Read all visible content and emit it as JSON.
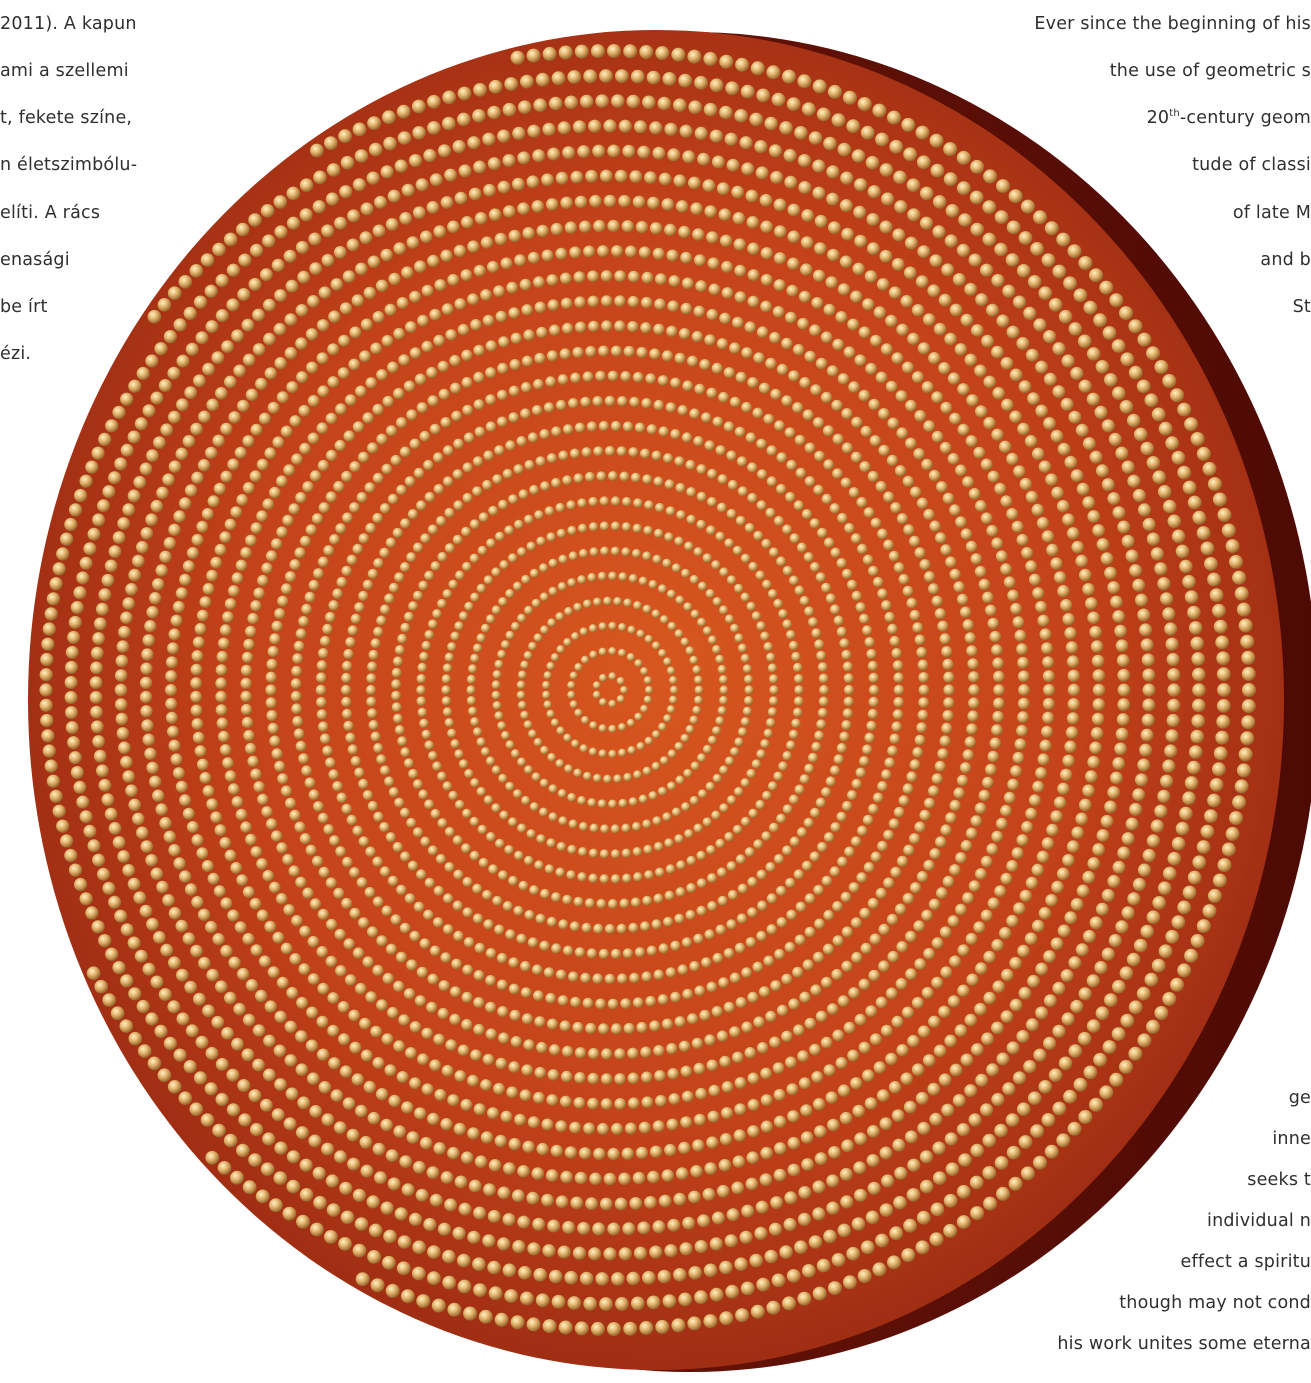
{
  "left_text": [
    "2011). A kapun",
    "ami a szellemi",
    "t, fekete színe,",
    "n életszimbólu-",
    "elíti. A rács",
    "enasági",
    "be írt",
    "ézi.",
    "-"
  ],
  "right_text": [
    "Ever since the beginning of his",
    "the use of geometric s",
    "20th-century geom",
    "tude of classi",
    "of late M",
    "and b",
    "St",
    "ge",
    "inne",
    "seeks t",
    "individual n",
    "effect a spiritu",
    "though may not cond",
    "his work unites some eterna"
  ],
  "artwork": {
    "icon": "circular-studded-wood-panel",
    "colors": {
      "wood": "#c9461b",
      "wood_dark": "#8e2410",
      "edge": "#5e0f06",
      "stud": "#e0b06a"
    }
  }
}
